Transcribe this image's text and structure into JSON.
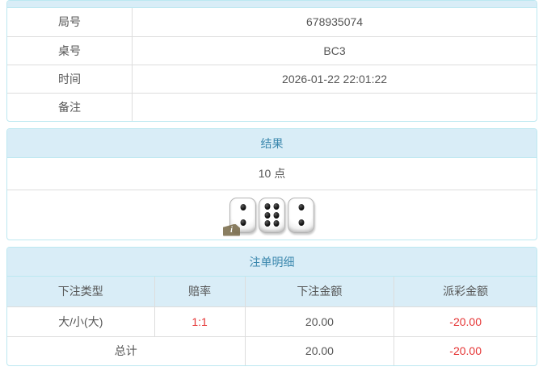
{
  "page": {
    "colors": {
      "accent_bg": "#d9edf7",
      "accent_border": "#bce8f1",
      "accent_text": "#3a87ad",
      "text": "#555555",
      "negative": "#e53333",
      "grid": "#dddddd"
    }
  },
  "game_info": {
    "rows": [
      {
        "label": "局号",
        "value": "678935074"
      },
      {
        "label": "桌号",
        "value": "BC3"
      },
      {
        "label": "时间",
        "value": "2026-01-22 22:01:22"
      },
      {
        "label": "备注",
        "value": ""
      }
    ]
  },
  "result": {
    "title": "结果",
    "points": "10 点",
    "dice": [
      2,
      6,
      2
    ],
    "info_icon": "i"
  },
  "bets": {
    "title": "注单明细",
    "columns": [
      "下注类型",
      "赔率",
      "下注金额",
      "派彩金额"
    ],
    "rows": [
      {
        "type": "大/小(大)",
        "odds": "1:1",
        "amount": "20.00",
        "payout": "-20.00"
      }
    ],
    "total": {
      "label": "总计",
      "amount": "20.00",
      "payout": "-20.00"
    }
  }
}
